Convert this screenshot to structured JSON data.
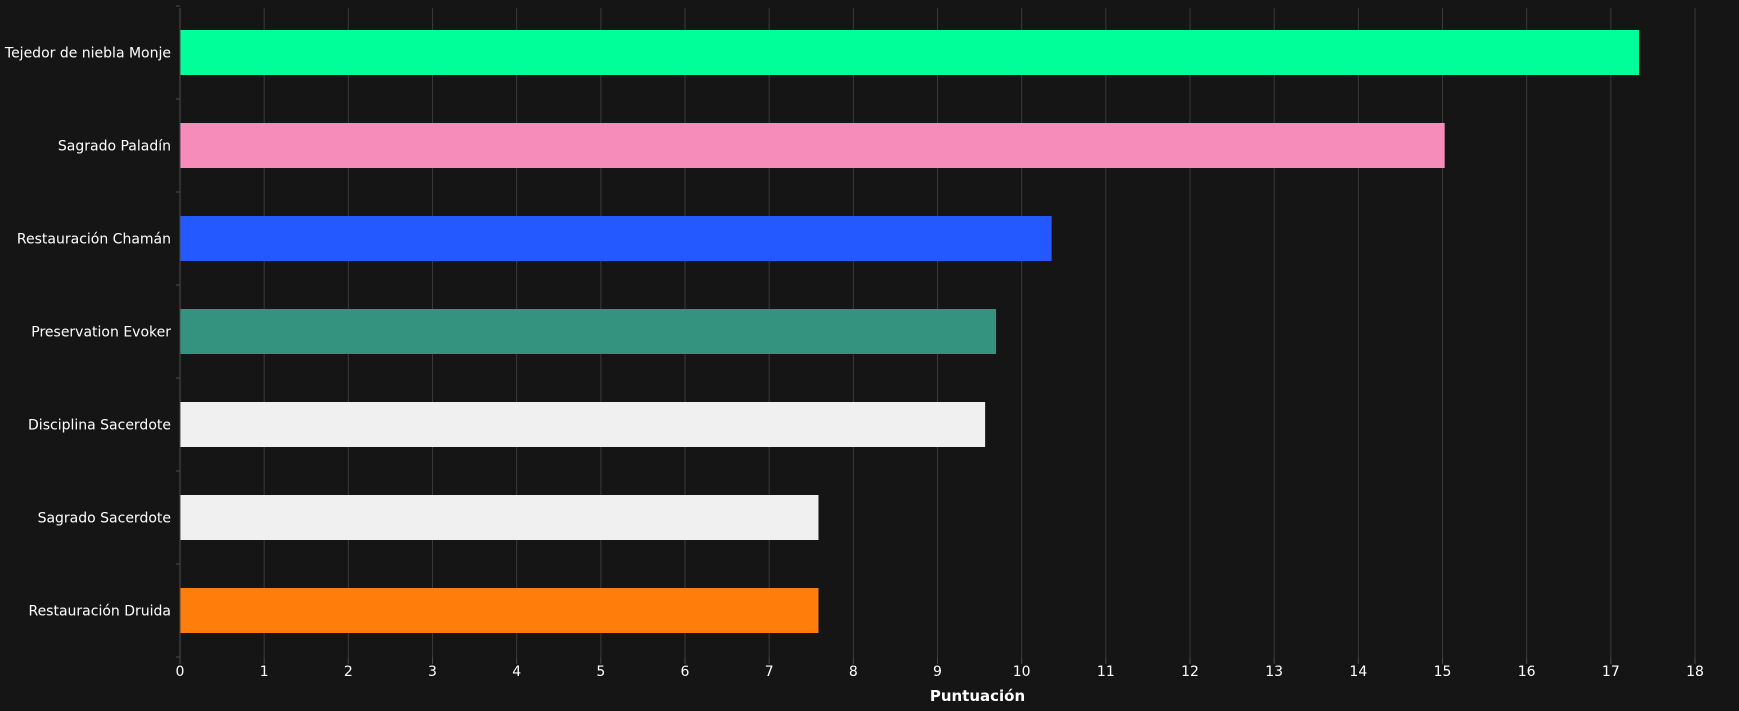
{
  "chart_data": {
    "type": "bar",
    "orientation": "horizontal",
    "categories": [
      "Tejedor de niebla Monje",
      "Sagrado Paladín",
      "Restauración Chamán",
      "Preservation Evoker",
      "Disciplina Sacerdote",
      "Sagrado Sacerdote",
      "Restauración Druida"
    ],
    "values": [
      17.33,
      15.02,
      10.35,
      9.69,
      9.56,
      7.58,
      7.58
    ],
    "colors": [
      "#00FF98",
      "#F58CBA",
      "#2459FF",
      "#33937F",
      "#F0F0F0",
      "#F0F0F0",
      "#FF7D0A"
    ],
    "xlabel": "Puntuación",
    "ylabel": "",
    "xlim": [
      0,
      18
    ],
    "x_ticks": [
      "0",
      "1",
      "2",
      "3",
      "4",
      "5",
      "6",
      "7",
      "8",
      "9",
      "10",
      "11",
      "12",
      "13",
      "14",
      "15",
      "16",
      "17",
      "18"
    ],
    "grid": true,
    "background": "#151515"
  }
}
